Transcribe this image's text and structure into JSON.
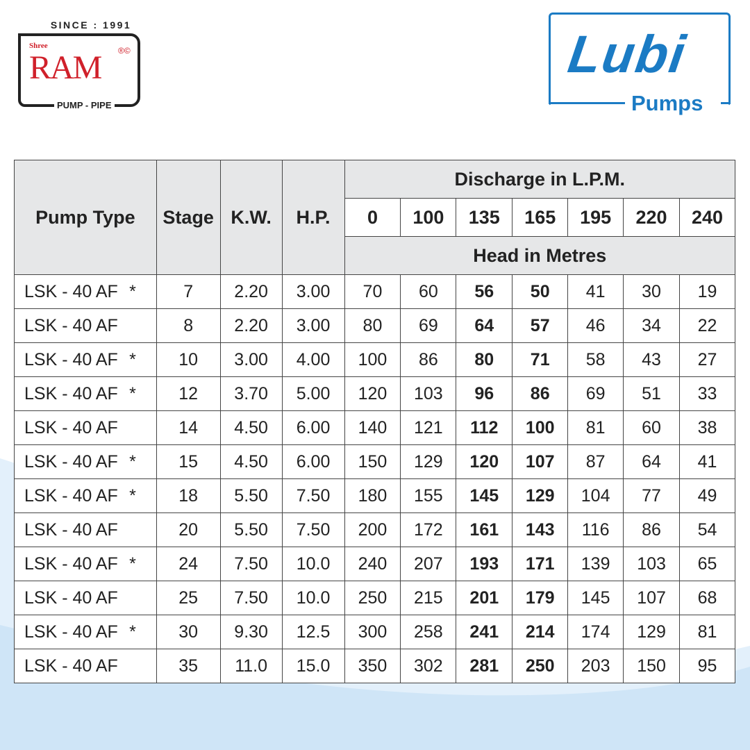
{
  "logos": {
    "ram": {
      "since": "SINCE : 1991",
      "shree": "Shree",
      "name": "RAM",
      "reg": "®©",
      "tagline": "PUMP - PIPE"
    },
    "lubi": {
      "name": "Lubi",
      "sub": "Pumps",
      "color": "#1b7bc4"
    }
  },
  "table": {
    "headers": {
      "pump_type": "Pump Type",
      "stage": "Stage",
      "kw": "K.W.",
      "hp": "H.P.",
      "discharge": "Discharge in L.P.M.",
      "head": "Head in Metres",
      "discharge_values": [
        "0",
        "100",
        "135",
        "165",
        "195",
        "220",
        "240"
      ]
    },
    "rows": [
      {
        "type": "LSK - 40 AF",
        "star": "*",
        "stage": "7",
        "kw": "2.20",
        "hp": "3.00",
        "heads": [
          "70",
          "60",
          "56",
          "50",
          "41",
          "30",
          "19"
        ]
      },
      {
        "type": "LSK - 40 AF",
        "star": "",
        "stage": "8",
        "kw": "2.20",
        "hp": "3.00",
        "heads": [
          "80",
          "69",
          "64",
          "57",
          "46",
          "34",
          "22"
        ]
      },
      {
        "type": "LSK - 40 AF",
        "star": "*",
        "stage": "10",
        "kw": "3.00",
        "hp": "4.00",
        "heads": [
          "100",
          "86",
          "80",
          "71",
          "58",
          "43",
          "27"
        ]
      },
      {
        "type": "LSK - 40 AF",
        "star": "*",
        "stage": "12",
        "kw": "3.70",
        "hp": "5.00",
        "heads": [
          "120",
          "103",
          "96",
          "86",
          "69",
          "51",
          "33"
        ]
      },
      {
        "type": "LSK - 40 AF",
        "star": "",
        "stage": "14",
        "kw": "4.50",
        "hp": "6.00",
        "heads": [
          "140",
          "121",
          "112",
          "100",
          "81",
          "60",
          "38"
        ]
      },
      {
        "type": "LSK - 40 AF",
        "star": "*",
        "stage": "15",
        "kw": "4.50",
        "hp": "6.00",
        "heads": [
          "150",
          "129",
          "120",
          "107",
          "87",
          "64",
          "41"
        ]
      },
      {
        "type": "LSK - 40 AF",
        "star": "*",
        "stage": "18",
        "kw": "5.50",
        "hp": "7.50",
        "heads": [
          "180",
          "155",
          "145",
          "129",
          "104",
          "77",
          "49"
        ]
      },
      {
        "type": "LSK - 40 AF",
        "star": "",
        "stage": "20",
        "kw": "5.50",
        "hp": "7.50",
        "heads": [
          "200",
          "172",
          "161",
          "143",
          "116",
          "86",
          "54"
        ]
      },
      {
        "type": "LSK - 40 AF",
        "star": "*",
        "stage": "24",
        "kw": "7.50",
        "hp": "10.0",
        "heads": [
          "240",
          "207",
          "193",
          "171",
          "139",
          "103",
          "65"
        ]
      },
      {
        "type": "LSK - 40 AF",
        "star": "",
        "stage": "25",
        "kw": "7.50",
        "hp": "10.0",
        "heads": [
          "250",
          "215",
          "201",
          "179",
          "145",
          "107",
          "68"
        ]
      },
      {
        "type": "LSK - 40 AF",
        "star": "*",
        "stage": "30",
        "kw": "9.30",
        "hp": "12.5",
        "heads": [
          "300",
          "258",
          "241",
          "214",
          "174",
          "129",
          "81"
        ]
      },
      {
        "type": "LSK - 40 AF",
        "star": "",
        "stage": "35",
        "kw": "11.0",
        "hp": "15.0",
        "heads": [
          "350",
          "302",
          "281",
          "250",
          "203",
          "150",
          "95"
        ]
      }
    ]
  }
}
